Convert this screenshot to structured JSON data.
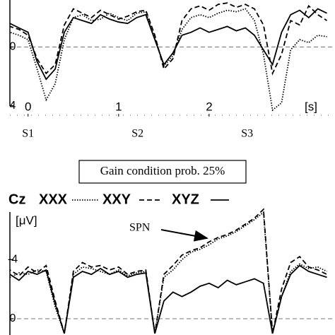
{
  "chart_data": [
    {
      "type": "line",
      "xlabel": "[s]",
      "xlim": [
        -0.31,
        3.39
      ],
      "ylim": [
        -3.2,
        4.5
      ],
      "y_inverted": true,
      "xticks": [
        0,
        1,
        2
      ],
      "yticks": [
        0,
        4
      ],
      "stimuli": [
        {
          "label": "S1",
          "x": 0
        },
        {
          "label": "S2",
          "x": 1.21
        },
        {
          "label": "S3",
          "x": 2.42
        }
      ],
      "x": [
        -0.3,
        -0.2,
        -0.1,
        0,
        0.1,
        0.2,
        0.3,
        0.4,
        0.5,
        0.6,
        0.7,
        0.8,
        0.9,
        1.0,
        1.1,
        1.2,
        1.3,
        1.4,
        1.5,
        1.6,
        1.7,
        1.8,
        1.9,
        2.0,
        2.1,
        2.2,
        2.3,
        2.4,
        2.5,
        2.6,
        2.7,
        2.8,
        2.9,
        3.0,
        3.1,
        3.2,
        3.3
      ],
      "series": [
        {
          "color": "#000000",
          "dash": "dotted",
          "values": [
            -1.1,
            -1.0,
            -0.8,
            -0.5,
            1.5,
            3.6,
            2.5,
            -0.5,
            -2.0,
            -2.2,
            -1.8,
            -1.9,
            -2.3,
            -2.0,
            -1.8,
            -2.3,
            -2.4,
            -0.6,
            1.3,
            0.6,
            -1.2,
            -2.0,
            -2.2,
            -2.0,
            -2.3,
            -2.5,
            -2.4,
            -2.6,
            -1.8,
            0.5,
            4.3,
            3.8,
            0.2,
            -0.5,
            -0.3,
            -0.8,
            -0.7
          ]
        },
        {
          "color": "#000000",
          "dash": "dashed",
          "values": [
            -1.3,
            -1.4,
            -1.2,
            -0.8,
            0.8,
            1.8,
            1.2,
            -1.5,
            -2.6,
            -2.3,
            -2.0,
            -2.5,
            -2.2,
            -1.9,
            -2.1,
            -2.4,
            -2.5,
            -0.8,
            1.5,
            0.8,
            -1.8,
            -2.6,
            -2.8,
            -2.5,
            -2.9,
            -3.0,
            -2.7,
            -2.9,
            -2.6,
            -1.5,
            1.8,
            0.5,
            -1.8,
            -1.5,
            -2.8,
            -2.2,
            -1.8
          ]
        },
        {
          "color": "#000000",
          "dash": "solid",
          "values": [
            -1.5,
            -1.6,
            -1.3,
            -1.0,
            1.0,
            2.2,
            1.5,
            -1.0,
            -2.0,
            -1.8,
            -1.6,
            -2.2,
            -1.9,
            -1.7,
            -1.6,
            -2.0,
            -2.2,
            -0.5,
            1.2,
            0.4,
            -0.8,
            -1.0,
            -1.3,
            -1.0,
            -1.2,
            -1.4,
            -1.1,
            -1.3,
            -0.8,
            0.2,
            1.2,
            -1.0,
            -2.2,
            -2.5,
            -2.0,
            -2.6,
            -2.3
          ]
        }
      ]
    },
    {
      "type": "line",
      "title": "Gain condition prob. 25%",
      "legend_title": "Cz",
      "ylabel": "[μV]",
      "annotation": "SPN",
      "xlim": [
        -0.31,
        3.39
      ],
      "ylim": [
        -7.6,
        1.1
      ],
      "y_inverted": true,
      "yticks": [
        -4,
        0
      ],
      "x": [
        -0.3,
        -0.2,
        -0.1,
        0,
        0.1,
        0.2,
        0.3,
        0.4,
        0.5,
        0.6,
        0.7,
        0.8,
        0.9,
        1.0,
        1.1,
        1.2,
        1.3,
        1.4,
        1.5,
        1.6,
        1.7,
        1.8,
        1.9,
        2.0,
        2.1,
        2.2,
        2.3,
        2.4,
        2.5,
        2.6,
        2.7,
        2.8,
        2.9,
        3.0,
        3.1,
        3.2,
        3.3
      ],
      "series": [
        {
          "name": "XXX",
          "color": "#000000",
          "dash": "dotted",
          "values": [
            -2.5,
            -2.8,
            -3.1,
            -3.0,
            -3.3,
            -3.2,
            -0.8,
            1.0,
            -3.0,
            -3.5,
            -3.4,
            -3.2,
            -3.0,
            -3.3,
            -2.9,
            -3.1,
            -3.2,
            1.0,
            -2.8,
            -3.3,
            -4.0,
            -4.5,
            -4.7,
            -5.0,
            -5.4,
            -5.6,
            -5.9,
            -6.3,
            -6.7,
            -7.2,
            1.0,
            -1.5,
            -3.2,
            -3.7,
            -3.4,
            -3.5,
            -3.2
          ]
        },
        {
          "name": "XXY",
          "color": "#000000",
          "dash": "dashed",
          "values": [
            -2.8,
            -3.3,
            -2.9,
            -3.5,
            -3.1,
            -3.6,
            -1.2,
            1.0,
            -3.2,
            -3.8,
            -3.5,
            -3.6,
            -3.3,
            -3.5,
            -3.0,
            -3.2,
            -3.3,
            1.0,
            -3.0,
            -3.6,
            -4.3,
            -4.6,
            -4.8,
            -5.2,
            -5.5,
            -5.7,
            -6.0,
            -6.4,
            -6.8,
            -7.4,
            1.0,
            -2.0,
            -3.8,
            -4.2,
            -3.5,
            -3.3,
            -3.0
          ]
        },
        {
          "name": "XYZ",
          "color": "#000000",
          "dash": "solid",
          "values": [
            -2.8,
            -3.0,
            -2.6,
            -3.2,
            -3.0,
            -3.3,
            -1.0,
            1.0,
            -2.8,
            -3.2,
            -3.0,
            -3.4,
            -3.0,
            -3.2,
            -2.8,
            -3.0,
            -3.1,
            1.0,
            -1.2,
            -1.8,
            -1.5,
            -1.8,
            -2.2,
            -2.4,
            -2.1,
            -2.6,
            -2.3,
            -2.5,
            -2.7,
            -2.4,
            1.0,
            -1.5,
            -3.0,
            -3.6,
            -3.2,
            -3.0,
            -2.8
          ]
        }
      ]
    }
  ]
}
